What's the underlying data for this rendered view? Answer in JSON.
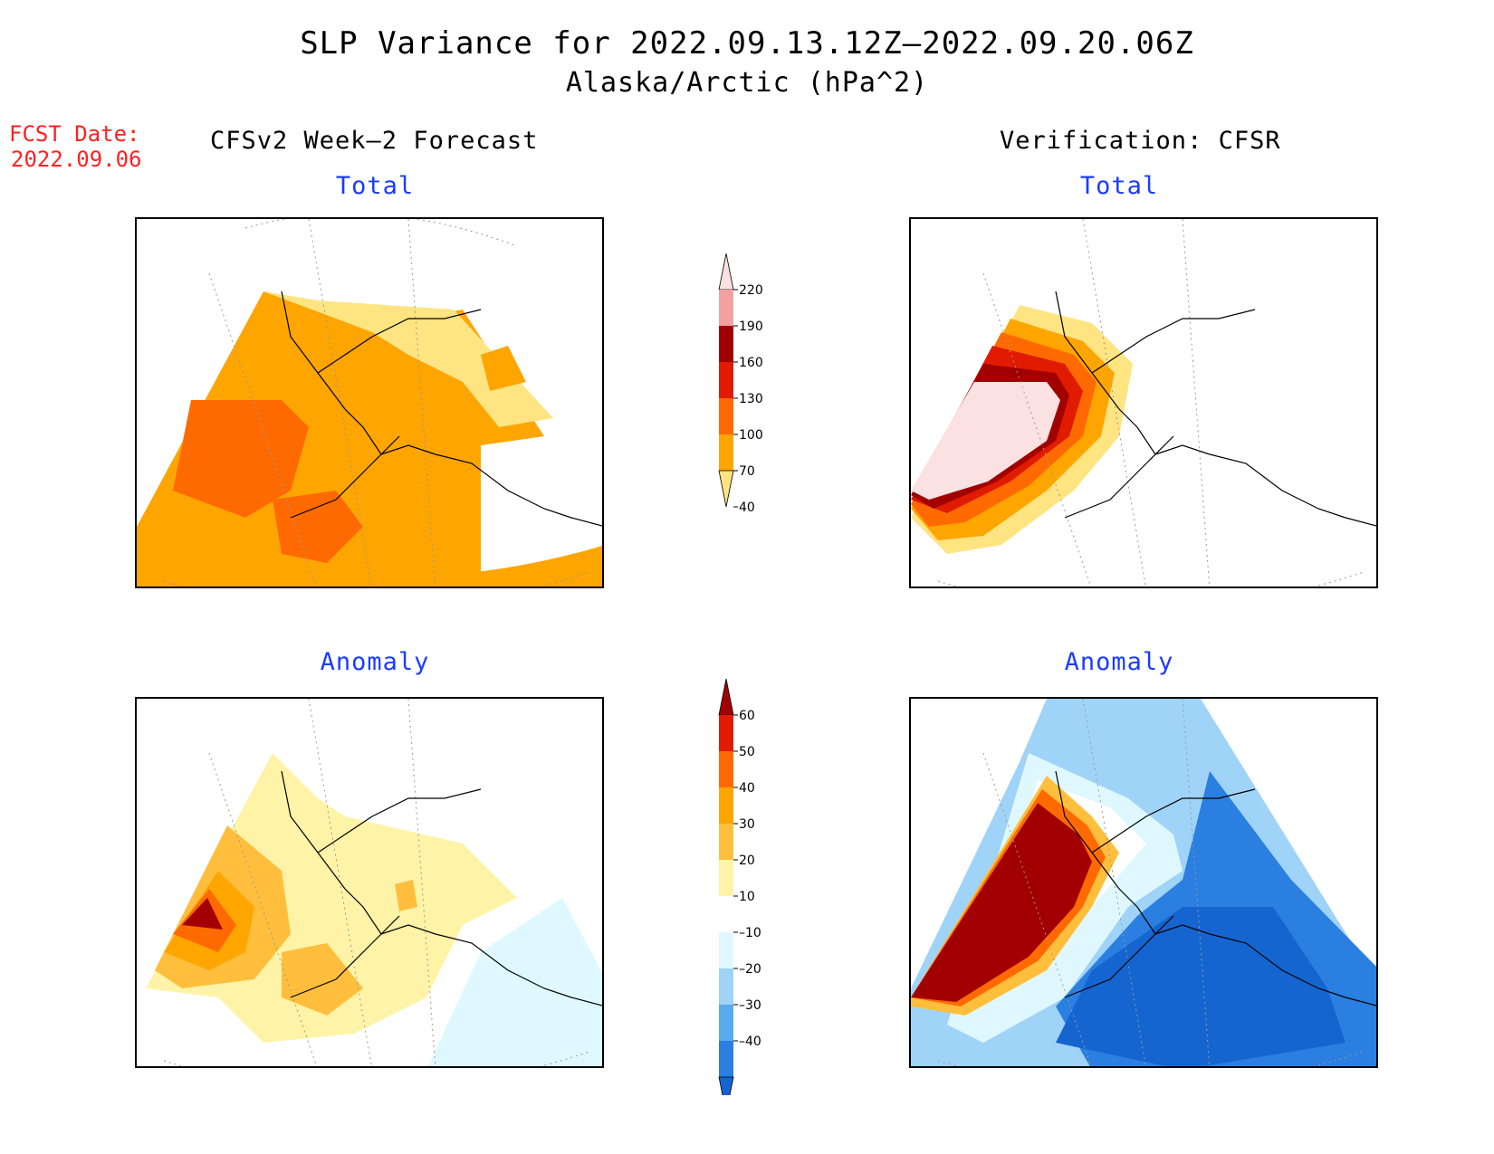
{
  "header": {
    "title": "SLP Variance for 2022.09.13.12Z–2022.09.20.06Z",
    "subtitle": "Alaska/Arctic (hPa^2)"
  },
  "fcst": {
    "label": "FCST Date:",
    "date": "2022.09.06"
  },
  "columns": {
    "left": "CFSv2 Week–2 Forecast",
    "right": "Verification: CFSR"
  },
  "panels": {
    "fcst_total": "Total",
    "ver_total": "Total",
    "fcst_anom": "Anomaly",
    "ver_anom": "Anomaly"
  },
  "colorbars": {
    "total": {
      "levels": [
        "220",
        "190",
        "160",
        "130",
        "100",
        "70",
        "40"
      ],
      "colors": [
        "#fbe1e1",
        "#f2a0a0",
        "#a20000",
        "#e01b00",
        "#ff6a00",
        "#ffa500",
        "#ffe482"
      ]
    },
    "anomaly": {
      "levels": [
        "60",
        "50",
        "40",
        "30",
        "20",
        "10",
        "–10",
        "–20",
        "–30",
        "–40"
      ],
      "colors": [
        "#a20000",
        "#e01b00",
        "#ff6a00",
        "#ffa500",
        "#ffbf3c",
        "#fff3a8",
        "#ffffff",
        "#dff8ff",
        "#9fd3f7",
        "#5aaaee",
        "#2a7fe0",
        "#1565d0"
      ]
    }
  }
}
